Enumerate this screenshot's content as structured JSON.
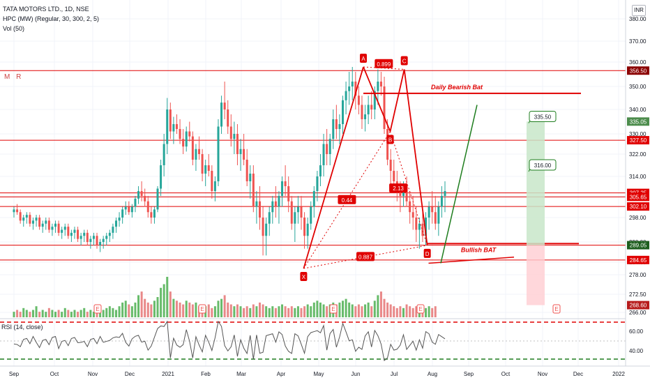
{
  "header": {
    "title": "TATA MOTORS LTD., 1D, NSE",
    "indicator": "HPC (MW) (Regular, 30, 300, 2, 5)",
    "volume": "Vol (50)",
    "currency": "INR",
    "rsi_label": "RSI (14, close)",
    "mr_label": "M R"
  },
  "colors": {
    "up": "#26a69a",
    "down": "#ef5350",
    "pattern_red": "#e00000",
    "target_green": "#1e7d1e",
    "grid": "#f0f3fa"
  },
  "chart_data": {
    "type": "candlestick",
    "ylim": [
      266,
      384
    ],
    "y_ticks": [
      380,
      370,
      360,
      350,
      340,
      330,
      322,
      314,
      306,
      298,
      290,
      284,
      278,
      272.5,
      266
    ],
    "x_ticks": [
      "Sep",
      "Oct",
      "Nov",
      "Dec",
      "2021",
      "Feb",
      "Mar",
      "Apr",
      "May",
      "Jun",
      "Jul",
      "Aug",
      "Sep",
      "Oct",
      "Nov",
      "Dec",
      "2022"
    ],
    "horizontal_levels": [
      356.5,
      327.5,
      307.25,
      305.65,
      302.1,
      289.05,
      284.65
    ],
    "price_tags": [
      {
        "value": 356.5,
        "label": "356.50",
        "color": "#8b0000"
      },
      {
        "value": 335.05,
        "label": "335.05",
        "color": "#4c8c4c"
      },
      {
        "value": 327.5,
        "label": "327.50",
        "color": "#e00000"
      },
      {
        "value": 307.25,
        "label": "307.25",
        "color": "#e00000"
      },
      {
        "value": 305.65,
        "label": "305.65",
        "color": "#e00000"
      },
      {
        "value": 302.1,
        "label": "302.10",
        "color": "#e00000"
      },
      {
        "value": 289.05,
        "label": "289.05",
        "color": "#1e5e1e"
      },
      {
        "value": 284.65,
        "label": "284.65",
        "color": "#e00000"
      },
      {
        "value": 268.6,
        "label": "268.60",
        "color": "#b71c1c"
      }
    ],
    "pattern_points": [
      {
        "label": "X",
        "date": "2021-04-19",
        "value": 281
      },
      {
        "label": "A",
        "date": "2021-06-07",
        "value": 358
      },
      {
        "label": "B",
        "date": "2021-06-28",
        "value": 331
      },
      {
        "label": "C",
        "date": "2021-07-09",
        "value": 357
      },
      {
        "label": "D",
        "date": "2021-07-27",
        "value": 289
      }
    ],
    "ratios": [
      "0.899",
      "0.44",
      "2.13",
      "0.887"
    ],
    "annotations": [
      "Daily Bearish Bat",
      "Bullish BAT"
    ],
    "targets": [
      "335.50",
      "316.00"
    ],
    "rsi_ticks": [
      60.0,
      40.0
    ],
    "event_markers": [
      "E",
      "E",
      "E",
      "E",
      "E"
    ],
    "series": [
      {
        "name": "price",
        "values": [
          [
            300,
            302,
            298,
            301
          ],
          [
            301,
            303,
            299,
            300
          ],
          [
            300,
            301,
            296,
            297
          ],
          [
            297,
            299,
            295,
            298
          ],
          [
            298,
            300,
            296,
            299
          ],
          [
            299,
            300,
            295,
            296
          ],
          [
            296,
            298,
            294,
            297
          ],
          [
            297,
            299,
            295,
            298
          ],
          [
            298,
            299,
            294,
            295
          ],
          [
            295,
            297,
            293,
            296
          ],
          [
            296,
            298,
            294,
            297
          ],
          [
            297,
            298,
            293,
            294
          ],
          [
            294,
            296,
            292,
            295
          ],
          [
            295,
            297,
            293,
            296
          ],
          [
            296,
            297,
            292,
            293
          ],
          [
            293,
            295,
            291,
            294
          ],
          [
            294,
            296,
            292,
            295
          ],
          [
            295,
            296,
            291,
            292
          ],
          [
            292,
            294,
            290,
            293
          ],
          [
            293,
            295,
            291,
            294
          ],
          [
            294,
            295,
            290,
            291
          ],
          [
            291,
            293,
            289,
            292
          ],
          [
            292,
            294,
            290,
            293
          ],
          [
            293,
            294,
            289,
            290
          ],
          [
            290,
            292,
            288,
            291
          ],
          [
            291,
            293,
            289,
            292
          ],
          [
            292,
            293,
            288,
            289
          ],
          [
            289,
            291,
            287,
            290
          ],
          [
            290,
            292,
            288,
            291
          ],
          [
            291,
            293,
            289,
            292
          ],
          [
            292,
            294,
            290,
            293
          ],
          [
            293,
            296,
            291,
            295
          ],
          [
            295,
            298,
            293,
            297
          ],
          [
            297,
            300,
            295,
            298
          ],
          [
            298,
            302,
            296,
            301
          ],
          [
            301,
            304,
            299,
            302
          ],
          [
            302,
            304,
            299,
            300
          ],
          [
            300,
            303,
            298,
            302
          ],
          [
            302,
            306,
            300,
            305
          ],
          [
            305,
            310,
            303,
            308
          ],
          [
            308,
            312,
            304,
            306
          ],
          [
            306,
            309,
            302,
            304
          ],
          [
            304,
            306,
            298,
            300
          ],
          [
            300,
            302,
            296,
            298
          ],
          [
            298,
            302,
            296,
            301
          ],
          [
            301,
            310,
            300,
            309
          ],
          [
            309,
            320,
            306,
            318
          ],
          [
            318,
            330,
            314,
            326
          ],
          [
            326,
            345,
            322,
            340
          ],
          [
            340,
            343,
            328,
            331
          ],
          [
            331,
            337,
            326,
            334
          ],
          [
            334,
            338,
            330,
            332
          ],
          [
            332,
            336,
            326,
            328
          ],
          [
            328,
            332,
            322,
            325
          ],
          [
            325,
            333,
            323,
            331
          ],
          [
            331,
            335,
            327,
            329
          ],
          [
            329,
            331,
            318,
            320
          ],
          [
            320,
            326,
            316,
            324
          ],
          [
            324,
            329,
            320,
            322
          ],
          [
            322,
            324,
            312,
            315
          ],
          [
            315,
            320,
            310,
            318
          ],
          [
            318,
            322,
            314,
            316
          ],
          [
            316,
            318,
            305,
            308
          ],
          [
            308,
            314,
            304,
            312
          ],
          [
            312,
            336,
            310,
            333
          ],
          [
            333,
            346,
            330,
            343
          ],
          [
            343,
            352,
            336,
            340
          ],
          [
            340,
            344,
            330,
            333
          ],
          [
            333,
            338,
            325,
            328
          ],
          [
            328,
            335,
            322,
            330
          ],
          [
            330,
            334,
            318,
            322
          ],
          [
            322,
            328,
            316,
            324
          ],
          [
            324,
            330,
            318,
            320
          ],
          [
            320,
            324,
            310,
            312
          ],
          [
            312,
            318,
            305,
            315
          ],
          [
            315,
            318,
            300,
            302
          ],
          [
            302,
            308,
            296,
            304
          ],
          [
            304,
            310,
            294,
            298
          ],
          [
            298,
            302,
            286,
            292
          ],
          [
            292,
            298,
            286,
            296
          ],
          [
            296,
            302,
            292,
            300
          ],
          [
            300,
            306,
            296,
            304
          ],
          [
            304,
            310,
            298,
            302
          ],
          [
            302,
            308,
            296,
            306
          ],
          [
            306,
            314,
            302,
            312
          ],
          [
            312,
            318,
            306,
            310
          ],
          [
            310,
            314,
            300,
            304
          ],
          [
            304,
            306,
            294,
            296
          ],
          [
            296,
            302,
            290,
            300
          ],
          [
            300,
            306,
            296,
            302
          ],
          [
            302,
            306,
            294,
            298
          ],
          [
            298,
            300,
            288,
            292
          ],
          [
            292,
            298,
            288,
            296
          ],
          [
            296,
            304,
            294,
            302
          ],
          [
            302,
            310,
            298,
            308
          ],
          [
            308,
            316,
            304,
            314
          ],
          [
            314,
            322,
            310,
            318
          ],
          [
            318,
            330,
            314,
            326
          ],
          [
            326,
            332,
            318,
            322
          ],
          [
            322,
            330,
            318,
            328
          ],
          [
            328,
            340,
            324,
            336
          ],
          [
            336,
            342,
            328,
            332
          ],
          [
            332,
            338,
            326,
            334
          ],
          [
            334,
            346,
            330,
            344
          ],
          [
            344,
            352,
            338,
            348
          ],
          [
            348,
            356,
            342,
            350
          ],
          [
            350,
            358,
            344,
            352
          ],
          [
            352,
            356,
            340,
            346
          ],
          [
            346,
            350,
            338,
            342
          ],
          [
            342,
            346,
            332,
            336
          ],
          [
            336,
            342,
            331,
            338
          ],
          [
            338,
            346,
            334,
            342
          ],
          [
            342,
            348,
            336,
            340
          ],
          [
            340,
            350,
            336,
            348
          ],
          [
            348,
            357,
            342,
            352
          ],
          [
            352,
            356,
            346,
            350
          ],
          [
            350,
            354,
            330,
            332
          ],
          [
            332,
            336,
            318,
            320
          ],
          [
            320,
            324,
            310,
            316
          ],
          [
            316,
            320,
            308,
            312
          ],
          [
            312,
            316,
            304,
            308
          ],
          [
            308,
            312,
            300,
            306
          ],
          [
            306,
            312,
            302,
            310
          ],
          [
            310,
            314,
            302,
            304
          ],
          [
            304,
            308,
            296,
            300
          ],
          [
            300,
            306,
            294,
            298
          ],
          [
            298,
            302,
            290,
            294
          ],
          [
            294,
            298,
            288,
            296
          ],
          [
            296,
            302,
            290,
            292
          ],
          [
            292,
            300,
            289,
            298
          ],
          [
            298,
            304,
            294,
            302
          ],
          [
            302,
            308,
            296,
            300
          ],
          [
            300,
            306,
            294,
            296
          ],
          [
            296,
            304,
            292,
            302
          ],
          [
            302,
            310,
            298,
            306
          ],
          [
            306,
            312,
            300,
            308
          ]
        ]
      },
      {
        "name": "volume",
        "values": [
          3,
          4,
          3,
          5,
          4,
          3,
          4,
          6,
          3,
          4,
          3,
          5,
          4,
          3,
          4,
          3,
          5,
          4,
          3,
          4,
          3,
          4,
          5,
          3,
          4,
          3,
          4,
          3,
          4,
          5,
          6,
          5,
          4,
          6,
          8,
          9,
          7,
          6,
          8,
          12,
          14,
          10,
          8,
          7,
          9,
          11,
          16,
          18,
          22,
          14,
          10,
          9,
          8,
          7,
          9,
          8,
          7,
          8,
          6,
          7,
          6,
          7,
          5,
          6,
          9,
          10,
          12,
          8,
          7,
          6,
          7,
          6,
          5,
          6,
          5,
          7,
          6,
          8,
          7,
          6,
          5,
          6,
          5,
          6,
          7,
          6,
          5,
          6,
          5,
          6,
          5,
          6,
          7,
          6,
          8,
          9,
          8,
          7,
          6,
          7,
          8,
          7,
          8,
          9,
          10,
          8,
          7,
          6,
          7,
          6,
          7,
          8,
          6,
          9,
          12,
          14,
          10,
          8,
          7,
          6,
          5,
          6,
          5,
          7,
          6,
          5,
          6,
          5,
          6,
          5,
          6,
          5,
          6
        ]
      }
    ]
  }
}
